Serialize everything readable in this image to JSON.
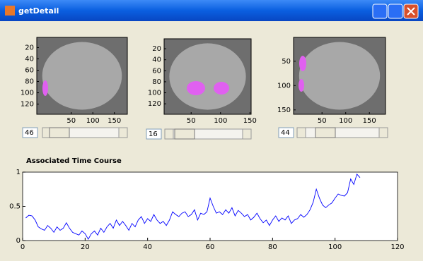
{
  "window": {
    "title": "getDetail"
  },
  "panels": [
    {
      "xlim": [
        -30,
        180
      ],
      "ylim": [
        2,
        138
      ],
      "xticks": [
        50,
        100,
        150
      ],
      "yticks": [
        20,
        40,
        60,
        80,
        100,
        120
      ],
      "slider_value": 46
    },
    {
      "xlim": [
        4,
        152
      ],
      "ylim": [
        2,
        139
      ],
      "xticks": [
        50,
        100,
        150
      ],
      "yticks": [
        20,
        40,
        60,
        80,
        100,
        120
      ],
      "slider_value": 16
    },
    {
      "xlim": [
        -10,
        184
      ],
      "ylim": [
        1,
        159
      ],
      "xticks": [
        50,
        100,
        150
      ],
      "yticks": [
        50,
        100,
        150
      ],
      "slider_value": 44
    }
  ],
  "chart_data": {
    "type": "line",
    "title": "Associated Time Course",
    "x": [
      1,
      2,
      3,
      4,
      5,
      6,
      7,
      8,
      9,
      10,
      11,
      12,
      13,
      14,
      15,
      16,
      17,
      18,
      19,
      20,
      21,
      22,
      23,
      24,
      25,
      26,
      27,
      28,
      29,
      30,
      31,
      32,
      33,
      34,
      35,
      36,
      37,
      38,
      39,
      40,
      41,
      42,
      43,
      44,
      45,
      46,
      47,
      48,
      49,
      50,
      51,
      52,
      53,
      54,
      55,
      56,
      57,
      58,
      59,
      60,
      61,
      62,
      63,
      64,
      65,
      66,
      67,
      68,
      69,
      70,
      71,
      72,
      73,
      74,
      75,
      76,
      77,
      78,
      79,
      80,
      81,
      82,
      83,
      84,
      85,
      86,
      87,
      88,
      89,
      90,
      91,
      92,
      93,
      94,
      95,
      96,
      97,
      98,
      99,
      100,
      101,
      102,
      103,
      104,
      105,
      106,
      107,
      108
    ],
    "series": [
      {
        "color": "#0000ff",
        "values": [
          0.33,
          0.37,
          0.36,
          0.3,
          0.2,
          0.17,
          0.15,
          0.22,
          0.18,
          0.12,
          0.2,
          0.15,
          0.18,
          0.26,
          0.18,
          0.12,
          0.1,
          0.08,
          0.14,
          0.1,
          0.02,
          0.1,
          0.14,
          0.08,
          0.18,
          0.12,
          0.2,
          0.25,
          0.18,
          0.3,
          0.22,
          0.28,
          0.22,
          0.15,
          0.25,
          0.2,
          0.3,
          0.35,
          0.25,
          0.32,
          0.28,
          0.38,
          0.3,
          0.25,
          0.28,
          0.22,
          0.3,
          0.42,
          0.38,
          0.35,
          0.4,
          0.42,
          0.35,
          0.38,
          0.45,
          0.3,
          0.4,
          0.38,
          0.42,
          0.62,
          0.5,
          0.4,
          0.42,
          0.38,
          0.45,
          0.4,
          0.48,
          0.36,
          0.44,
          0.4,
          0.35,
          0.38,
          0.3,
          0.34,
          0.4,
          0.32,
          0.26,
          0.3,
          0.22,
          0.3,
          0.36,
          0.28,
          0.33,
          0.3,
          0.36,
          0.25,
          0.3,
          0.32,
          0.38,
          0.34,
          0.38,
          0.45,
          0.56,
          0.75,
          0.62,
          0.52,
          0.48,
          0.52,
          0.55,
          0.62,
          0.68,
          0.66,
          0.65,
          0.7,
          0.9,
          0.82,
          0.97,
          0.92
        ]
      }
    ],
    "xlim": [
      0,
      120
    ],
    "ylim": [
      0,
      1
    ],
    "xticks": [
      0,
      20,
      40,
      60,
      80,
      100,
      120
    ],
    "yticks": [
      0,
      0.5,
      1
    ]
  }
}
